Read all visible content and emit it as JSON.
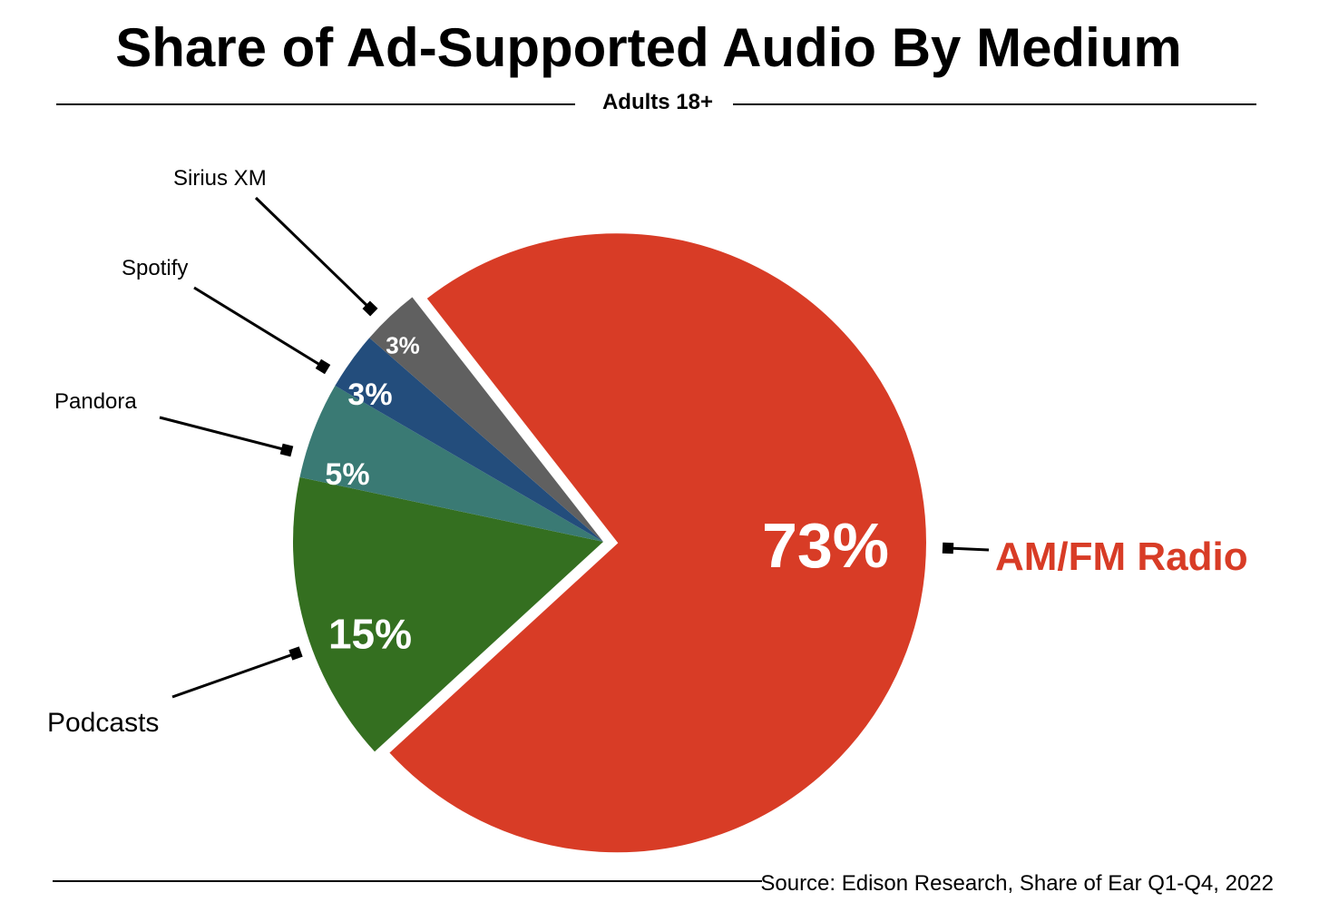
{
  "chart_data": {
    "type": "pie",
    "title": "Share of Ad-Supported Audio By Medium",
    "subtitle": "Adults 18+",
    "source": "Source: Edison Research, Share of Ear Q1-Q4, 2022",
    "slices": [
      {
        "label": "AM/FM Radio",
        "value": 73,
        "data_label": "73%",
        "color": "#d83c26",
        "label_color": "#d83c26",
        "exploded": true
      },
      {
        "label": "Podcasts",
        "value": 15,
        "data_label": "15%",
        "color": "#346f20"
      },
      {
        "label": "Pandora",
        "value": 5,
        "data_label": "5%",
        "color": "#3a7a74"
      },
      {
        "label": "Spotify",
        "value": 3,
        "data_label": "3%",
        "color": "#234d7c"
      },
      {
        "label": "Sirius XM",
        "value": 3,
        "data_label": "3%",
        "color": "#606060"
      }
    ]
  }
}
